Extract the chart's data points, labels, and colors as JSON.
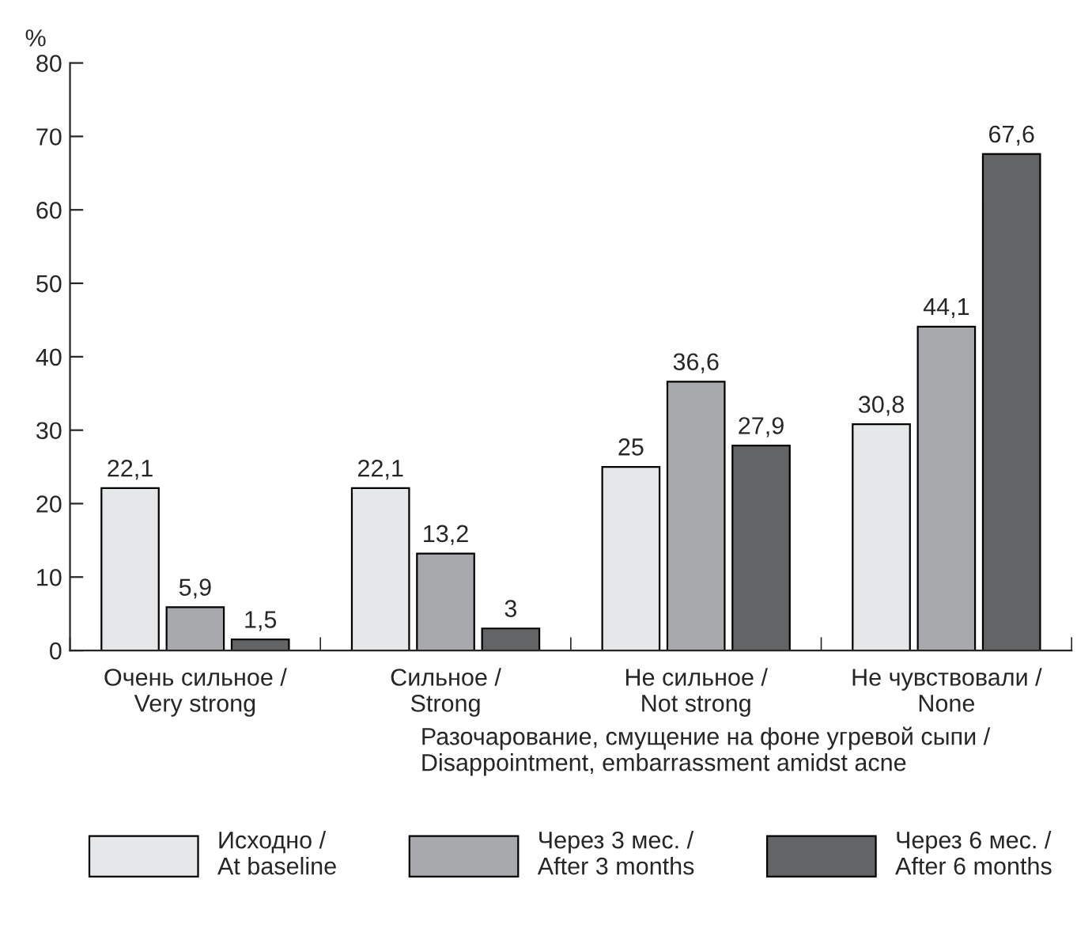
{
  "chart_data": {
    "type": "bar",
    "ylabel": "%",
    "xlabel": "Разочарование, смущение на фоне угревой сыпи /\nDisappointment, embarrassment amidst acne",
    "categories": [
      "Очень сильное /\nVery strong",
      "Сильное /\nStrong",
      "Не сильное /\nNot strong",
      "Не чувствовали /\nNone"
    ],
    "series": [
      {
        "name": "Исходно /\nAt baseline",
        "color": "#e6e7e8",
        "values": [
          22.1,
          22.1,
          25,
          30.8
        ],
        "value_labels": [
          "22,1",
          "22,1",
          "25",
          "30,8"
        ]
      },
      {
        "name": "Через 3 мес. /\nAfter 3 months",
        "color": "#a7a9ac",
        "values": [
          5.9,
          13.2,
          36.6,
          44.1
        ],
        "value_labels": [
          "5,9",
          "13,2",
          "36,6",
          "44,1"
        ]
      },
      {
        "name": "Через 6 мес. /\nAfter 6 months",
        "color": "#636466",
        "values": [
          1.5,
          3,
          27.9,
          67.6
        ],
        "value_labels": [
          "1,5",
          "3",
          "27,9",
          "67,6"
        ]
      }
    ],
    "ylim": [
      0,
      80
    ],
    "yticks": [
      0,
      10,
      20,
      30,
      40,
      50,
      60,
      70,
      80
    ],
    "grid": false,
    "legend": "bottom"
  }
}
